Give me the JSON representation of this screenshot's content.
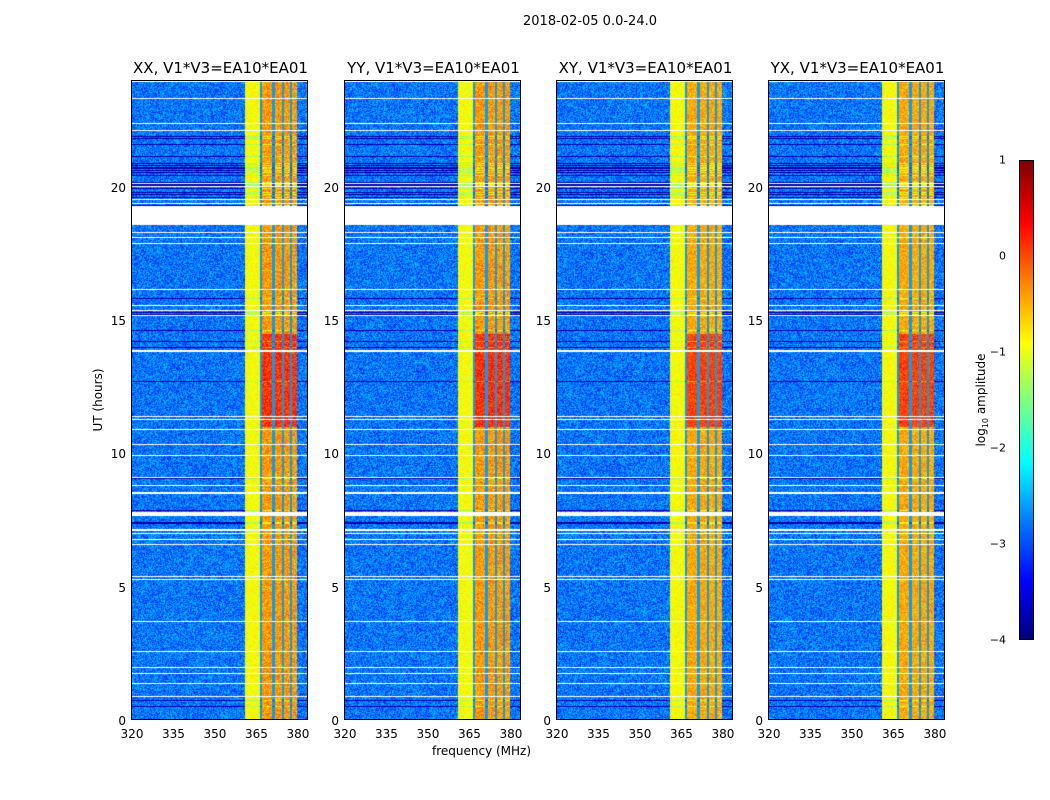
{
  "chart_data": {
    "type": "heatmap",
    "title": "2018-02-05 0.0-24.0",
    "xlabel": "frequency (MHz)",
    "ylabel": "UT (hours)",
    "xlim": [
      320,
      384
    ],
    "ylim": [
      0,
      24
    ],
    "xticks": [
      "320",
      "335",
      "350",
      "365",
      "380"
    ],
    "yticks": [
      "0",
      "5",
      "10",
      "15",
      "20"
    ],
    "panels": [
      {
        "title": "XX, V1*V3=EA10*EA01"
      },
      {
        "title": "YY, V1*V3=EA10*EA01"
      },
      {
        "title": "XY, V1*V3=EA10*EA01"
      },
      {
        "title": "YX, V1*V3=EA10*EA01"
      }
    ],
    "colorbar": {
      "label": "log10 amplitude",
      "label_main": "log",
      "label_sub": "10",
      "label_rest": " amplitude",
      "clim": [
        -4,
        1
      ],
      "ticks": [
        "1",
        "0",
        "−1",
        "−2",
        "−3",
        "−4"
      ],
      "colormap": "jet"
    },
    "features": {
      "background_level": -2.8,
      "band_mhz": [
        361,
        380
      ],
      "band_level": -0.6,
      "flagged_hours": [
        [
          18.6,
          19.3
        ],
        [
          7.65,
          7.8
        ]
      ]
    }
  }
}
